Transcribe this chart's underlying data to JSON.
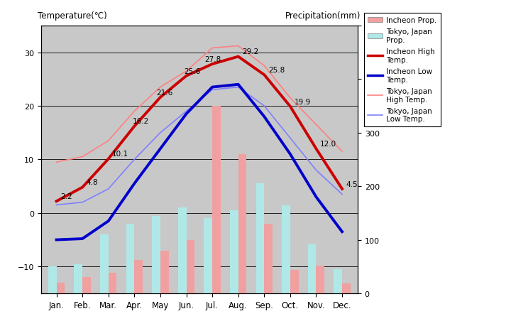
{
  "months": [
    "Jan.",
    "Feb.",
    "Mar.",
    "Apr.",
    "May",
    "Jun.",
    "Jul.",
    "Aug.",
    "Sep.",
    "Oct.",
    "Nov.",
    "Dec."
  ],
  "incheon_high": [
    2.2,
    4.8,
    10.1,
    16.2,
    21.6,
    25.6,
    27.8,
    29.2,
    25.8,
    19.9,
    12.0,
    4.5
  ],
  "incheon_low": [
    -5.0,
    -4.8,
    -1.5,
    5.5,
    12.0,
    18.5,
    23.5,
    24.0,
    18.0,
    11.0,
    3.0,
    -3.5
  ],
  "tokyo_high": [
    9.5,
    10.5,
    13.5,
    19.0,
    23.5,
    26.5,
    30.8,
    31.2,
    27.5,
    21.5,
    16.5,
    11.5
  ],
  "tokyo_low": [
    1.5,
    2.0,
    4.5,
    10.0,
    15.0,
    19.0,
    23.0,
    23.5,
    20.0,
    14.0,
    8.0,
    3.5
  ],
  "incheon_precip": [
    20,
    30,
    38,
    62,
    80,
    100,
    350,
    260,
    130,
    44,
    52,
    18
  ],
  "tokyo_precip": [
    50,
    55,
    110,
    130,
    145,
    160,
    140,
    155,
    205,
    165,
    92,
    45
  ],
  "temp_ylim": [
    -15,
    35
  ],
  "precip_ylim": [
    0,
    500
  ],
  "bg_color": "#c8c8c8",
  "plot_bg_color": "#b8b8b8",
  "incheon_high_color": "#cc0000",
  "incheon_low_color": "#0000cc",
  "tokyo_high_color": "#ff8080",
  "tokyo_low_color": "#8080ff",
  "incheon_bar_color": "#f0a0a0",
  "tokyo_bar_color": "#b0e8e8",
  "title_left": "Temperature(℃)",
  "title_right": "Precipitation(mm)",
  "legend_labels": [
    "Incheon Prop.",
    "Tokyo, Japan\nProp.",
    "Incheon High\nTemp.",
    "Incheon Low\nTemp.",
    "Tokyo, Japan\nHigh Temp.",
    "Tokyo, Japan\nLow Temp."
  ],
  "incheon_high_ann": [
    2.2,
    4.8,
    10.1,
    16.2,
    21.6,
    25.6,
    27.8,
    29.2,
    25.8,
    19.9,
    12.0,
    4.5
  ],
  "ann_show": [
    true,
    true,
    true,
    true,
    true,
    true,
    true,
    true,
    true,
    true,
    true,
    true
  ]
}
